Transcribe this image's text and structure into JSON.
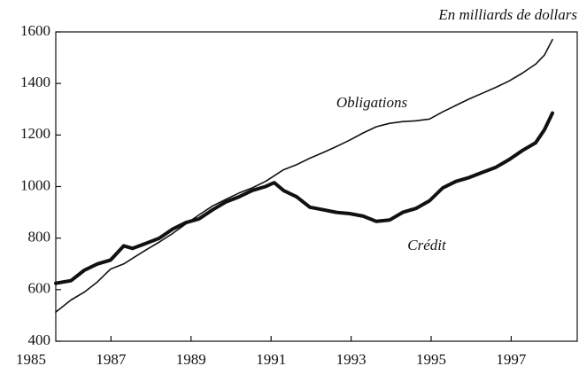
{
  "chart_data": {
    "type": "line",
    "subtitle": "En milliards de dollars",
    "annotations": [
      "Obligations",
      "Crédit"
    ],
    "x": [
      1985.62,
      1986.0,
      1986.33,
      1986.66,
      1986.99,
      1987.32,
      1987.54,
      1987.88,
      1988.21,
      1988.54,
      1988.87,
      1989.2,
      1989.54,
      1989.87,
      1990.2,
      1990.53,
      1990.86,
      1991.08,
      1991.31,
      1991.64,
      1991.97,
      1992.3,
      1992.63,
      1992.96,
      1993.3,
      1993.63,
      1993.96,
      1994.29,
      1994.62,
      1994.96,
      1995.29,
      1995.62,
      1995.95,
      1996.28,
      1996.62,
      1996.95,
      1997.28,
      1997.61,
      1997.83,
      1998.03
    ],
    "series": [
      {
        "name": "Obligations",
        "color": "#111111",
        "width": 1.6,
        "values": [
          513,
          560,
          590,
          630,
          680,
          700,
          722,
          755,
          785,
          818,
          855,
          890,
          925,
          950,
          975,
          995,
          1020,
          1042,
          1065,
          1085,
          1110,
          1132,
          1155,
          1180,
          1208,
          1232,
          1245,
          1252,
          1255,
          1262,
          1290,
          1315,
          1340,
          1362,
          1385,
          1410,
          1440,
          1475,
          1510,
          1570
        ]
      },
      {
        "name": "Crédit",
        "color": "#111111",
        "width": 4,
        "values": [
          625,
          635,
          675,
          700,
          715,
          770,
          760,
          780,
          800,
          835,
          860,
          875,
          910,
          940,
          960,
          985,
          1000,
          1015,
          985,
          960,
          920,
          910,
          900,
          895,
          885,
          865,
          870,
          900,
          915,
          945,
          995,
          1020,
          1035,
          1055,
          1075,
          1105,
          1140,
          1170,
          1220,
          1285
        ]
      }
    ],
    "xlim": [
      1985.62,
      1998.65
    ],
    "xticks": [
      1985,
      1987,
      1989,
      1991,
      1993,
      1995,
      1997
    ],
    "ylim": [
      400,
      1600
    ],
    "yticks": [
      400,
      600,
      800,
      1000,
      1200,
      1400,
      1600
    ],
    "grid": false
  }
}
